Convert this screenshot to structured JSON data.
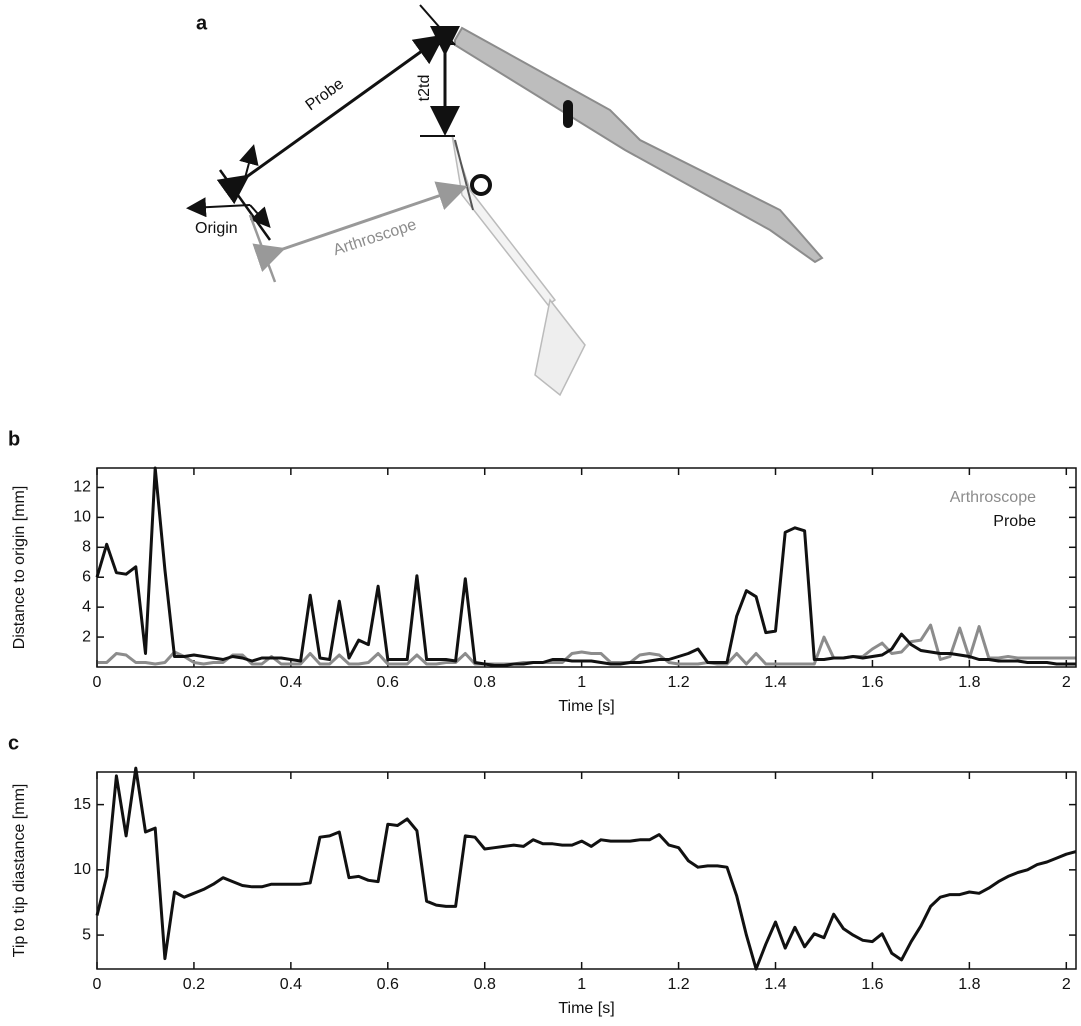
{
  "diagram": {
    "label": "a",
    "probe": "Probe",
    "t2td": "t2td",
    "origin": "Origin",
    "arthroscope": "Arthroscope"
  },
  "chart_data": [
    {
      "type": "line",
      "label": "b",
      "ylabel": "Distance to origin [mm]",
      "xlabel": "Time [s]",
      "x": [
        0,
        0.02,
        0.04,
        0.06,
        0.08,
        0.1,
        0.12,
        0.14,
        0.16,
        0.18,
        0.2,
        0.22,
        0.24,
        0.26,
        0.28,
        0.3,
        0.32,
        0.34,
        0.36,
        0.38,
        0.4,
        0.42,
        0.44,
        0.46,
        0.48,
        0.5,
        0.52,
        0.54,
        0.56,
        0.58,
        0.6,
        0.62,
        0.64,
        0.66,
        0.68,
        0.7,
        0.72,
        0.74,
        0.76,
        0.78,
        0.8,
        0.82,
        0.84,
        0.86,
        0.88,
        0.9,
        0.92,
        0.94,
        0.96,
        0.98,
        1,
        1.02,
        1.04,
        1.06,
        1.08,
        1.1,
        1.12,
        1.14,
        1.16,
        1.18,
        1.2,
        1.22,
        1.24,
        1.26,
        1.28,
        1.3,
        1.32,
        1.34,
        1.36,
        1.38,
        1.4,
        1.42,
        1.44,
        1.46,
        1.48,
        1.5,
        1.52,
        1.54,
        1.56,
        1.58,
        1.6,
        1.62,
        1.64,
        1.66,
        1.68,
        1.7,
        1.72,
        1.74,
        1.76,
        1.78,
        1.8,
        1.82,
        1.84,
        1.86,
        1.88,
        1.9,
        1.92,
        1.94,
        1.96,
        1.98,
        2,
        2.02
      ],
      "series": [
        {
          "name": "Arthroscope",
          "color": "#8c8c8c",
          "values": [
            0.3,
            0.3,
            0.9,
            0.8,
            0.3,
            0.3,
            0.2,
            0.3,
            1.0,
            0.7,
            0.3,
            0.2,
            0.3,
            0.3,
            0.8,
            0.8,
            0.2,
            0.2,
            0.7,
            0.2,
            0.2,
            0.2,
            0.9,
            0.2,
            0.2,
            0.8,
            0.2,
            0.2,
            0.3,
            0.9,
            0.2,
            0.2,
            0.2,
            0.8,
            0.2,
            0.2,
            0.3,
            0.3,
            0.9,
            0.2,
            0.2,
            0.2,
            0.2,
            0.2,
            0.3,
            0.3,
            0.3,
            0.3,
            0.3,
            0.9,
            1.0,
            0.9,
            0.9,
            0.3,
            0.3,
            0.3,
            0.8,
            0.9,
            0.8,
            0.3,
            0.2,
            0.2,
            0.2,
            0.3,
            0.2,
            0.2,
            0.9,
            0.2,
            0.9,
            0.2,
            0.2,
            0.2,
            0.2,
            0.2,
            0.2,
            2.0,
            0.6,
            0.6,
            0.7,
            0.7,
            1.2,
            1.6,
            0.9,
            1.0,
            1.7,
            1.8,
            2.8,
            0.5,
            0.7,
            2.6,
            0.6,
            2.7,
            0.6,
            0.6,
            0.7,
            0.6,
            0.6,
            0.6,
            0.6,
            0.6,
            0.6,
            0.6
          ]
        },
        {
          "name": "Probe",
          "color": "#111111",
          "values": [
            6.0,
            8.2,
            6.3,
            6.2,
            6.7,
            0.9,
            13.3,
            6.5,
            0.7,
            0.7,
            0.8,
            0.7,
            0.6,
            0.5,
            0.7,
            0.6,
            0.4,
            0.6,
            0.6,
            0.6,
            0.5,
            0.4,
            4.8,
            0.6,
            0.5,
            4.4,
            0.6,
            1.8,
            1.5,
            5.4,
            0.5,
            0.5,
            0.5,
            6.1,
            0.5,
            0.5,
            0.5,
            0.4,
            5.9,
            0.3,
            0.2,
            0.1,
            0.1,
            0.2,
            0.2,
            0.3,
            0.3,
            0.5,
            0.5,
            0.4,
            0.4,
            0.4,
            0.3,
            0.2,
            0.2,
            0.3,
            0.3,
            0.4,
            0.5,
            0.5,
            0.7,
            0.9,
            1.2,
            0.3,
            0.3,
            0.3,
            3.4,
            5.1,
            4.7,
            2.3,
            2.4,
            9.0,
            9.3,
            9.1,
            0.5,
            0.5,
            0.6,
            0.6,
            0.7,
            0.6,
            0.7,
            0.8,
            1.2,
            2.2,
            1.5,
            1.1,
            1.0,
            0.9,
            0.9,
            0.8,
            0.7,
            0.5,
            0.5,
            0.4,
            0.4,
            0.4,
            0.3,
            0.3,
            0.3,
            0.2,
            0.2,
            0.2
          ]
        }
      ],
      "xlim": [
        0,
        2.02
      ],
      "xticks": [
        0,
        0.2,
        0.4,
        0.6,
        0.8,
        1,
        1.2,
        1.4,
        1.6,
        1.8,
        2
      ],
      "ylim": [
        0,
        13.3
      ],
      "yticks": [
        2,
        4,
        6,
        8,
        10,
        12
      ],
      "legend": "upper right"
    },
    {
      "type": "line",
      "label": "c",
      "ylabel": "Tip to tip diastance [mm]",
      "xlabel": "Time [s]",
      "x": [
        0,
        0.02,
        0.04,
        0.06,
        0.08,
        0.1,
        0.12,
        0.14,
        0.16,
        0.18,
        0.2,
        0.22,
        0.24,
        0.26,
        0.28,
        0.3,
        0.32,
        0.34,
        0.36,
        0.38,
        0.4,
        0.42,
        0.44,
        0.46,
        0.48,
        0.5,
        0.52,
        0.54,
        0.56,
        0.58,
        0.6,
        0.62,
        0.64,
        0.66,
        0.68,
        0.7,
        0.72,
        0.74,
        0.76,
        0.78,
        0.8,
        0.82,
        0.84,
        0.86,
        0.88,
        0.9,
        0.92,
        0.94,
        0.96,
        0.98,
        1,
        1.02,
        1.04,
        1.06,
        1.08,
        1.1,
        1.12,
        1.14,
        1.16,
        1.18,
        1.2,
        1.22,
        1.24,
        1.26,
        1.28,
        1.3,
        1.32,
        1.34,
        1.36,
        1.38,
        1.4,
        1.42,
        1.44,
        1.46,
        1.48,
        1.5,
        1.52,
        1.54,
        1.56,
        1.58,
        1.6,
        1.62,
        1.64,
        1.66,
        1.68,
        1.7,
        1.72,
        1.74,
        1.76,
        1.78,
        1.8,
        1.82,
        1.84,
        1.86,
        1.88,
        1.9,
        1.92,
        1.94,
        1.96,
        1.98,
        2,
        2.02
      ],
      "series": [
        {
          "color": "#111111",
          "values": [
            6.5,
            9.5,
            17.2,
            12.6,
            17.8,
            12.9,
            13.2,
            3.2,
            8.3,
            7.9,
            8.2,
            8.5,
            8.9,
            9.4,
            9.1,
            8.8,
            8.7,
            8.7,
            8.9,
            8.9,
            8.9,
            8.9,
            9.0,
            12.5,
            12.6,
            12.9,
            9.4,
            9.5,
            9.2,
            9.1,
            13.5,
            13.4,
            13.9,
            13.0,
            7.6,
            7.3,
            7.2,
            7.2,
            12.6,
            12.5,
            11.6,
            11.7,
            11.8,
            11.9,
            11.8,
            12.3,
            12.0,
            12.0,
            11.9,
            11.9,
            12.2,
            11.8,
            12.3,
            12.2,
            12.2,
            12.2,
            12.3,
            12.3,
            12.7,
            11.9,
            11.7,
            10.7,
            10.2,
            10.3,
            10.3,
            10.2,
            8.0,
            5.0,
            2.4,
            4.3,
            6.0,
            4.0,
            5.6,
            4.1,
            5.1,
            4.8,
            6.6,
            5.5,
            5.0,
            4.6,
            4.5,
            5.1,
            3.6,
            3.1,
            4.5,
            5.7,
            7.2,
            7.9,
            8.1,
            8.1,
            8.3,
            8.2,
            8.6,
            9.1,
            9.5,
            9.8,
            10.0,
            10.4,
            10.6,
            10.9,
            11.2,
            11.4
          ]
        }
      ],
      "xlim": [
        0,
        2.02
      ],
      "xticks": [
        0,
        0.2,
        0.4,
        0.6,
        0.8,
        1,
        1.2,
        1.4,
        1.6,
        1.8,
        2
      ],
      "ylim": [
        2.4,
        17.5
      ],
      "yticks": [
        5,
        10,
        15
      ]
    }
  ]
}
